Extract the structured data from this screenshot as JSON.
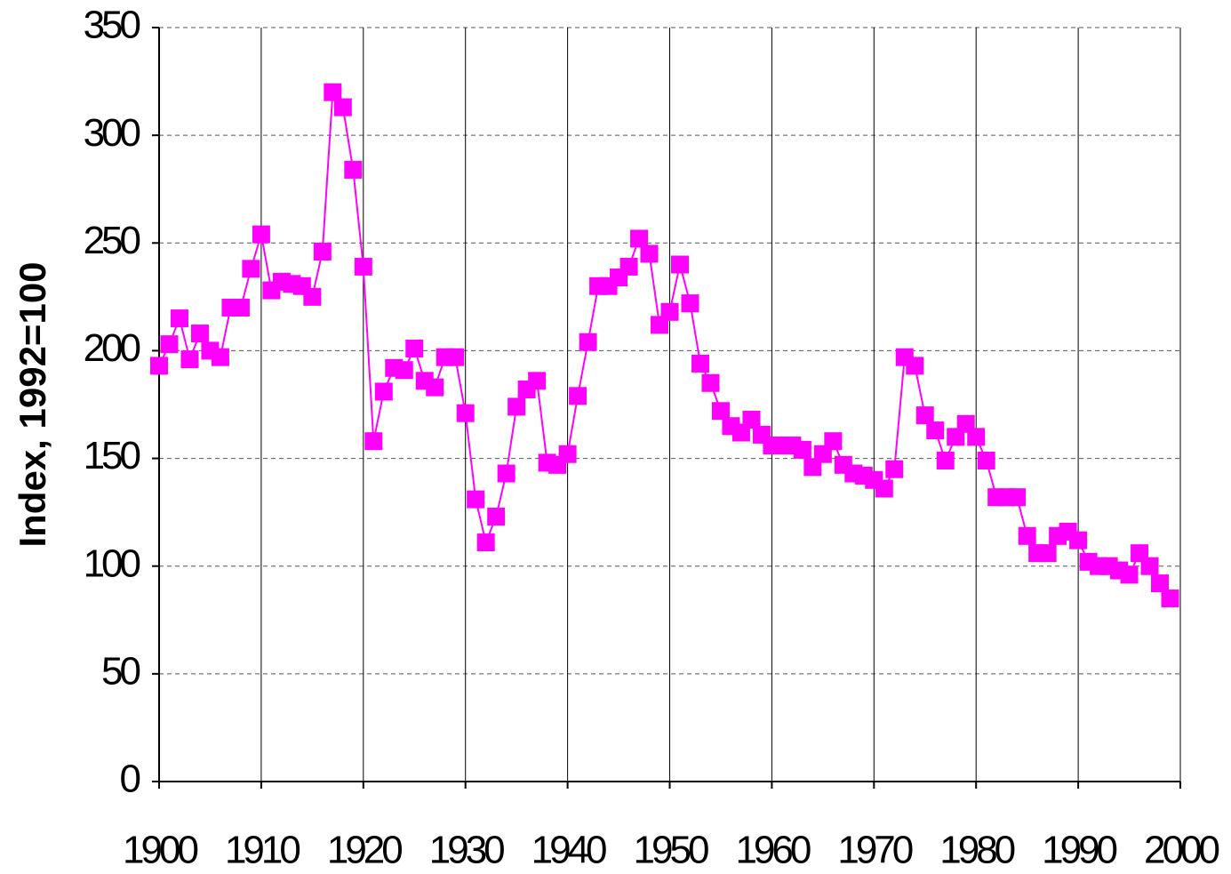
{
  "chart_data": {
    "type": "line",
    "y_label": "Index, 1992=100",
    "x": [
      1900,
      1901,
      1902,
      1903,
      1904,
      1905,
      1906,
      1907,
      1908,
      1909,
      1910,
      1911,
      1912,
      1913,
      1914,
      1915,
      1916,
      1917,
      1918,
      1919,
      1920,
      1921,
      1922,
      1923,
      1924,
      1925,
      1926,
      1927,
      1928,
      1929,
      1930,
      1931,
      1932,
      1933,
      1934,
      1935,
      1936,
      1937,
      1938,
      1939,
      1940,
      1941,
      1942,
      1943,
      1944,
      1945,
      1946,
      1947,
      1948,
      1949,
      1950,
      1951,
      1952,
      1953,
      1954,
      1955,
      1956,
      1957,
      1958,
      1959,
      1960,
      1961,
      1962,
      1963,
      1964,
      1965,
      1966,
      1967,
      1968,
      1969,
      1970,
      1971,
      1972,
      1973,
      1974,
      1975,
      1976,
      1977,
      1978,
      1979,
      1980,
      1981,
      1982,
      1983,
      1984,
      1985,
      1986,
      1987,
      1988,
      1989,
      1990,
      1991,
      1992,
      1993,
      1994,
      1995,
      1996,
      1997,
      1998,
      1999
    ],
    "series": [
      {
        "color": "#ff00ff",
        "values": [
          193,
          203,
          215,
          196,
          208,
          200,
          197,
          220,
          220,
          238,
          254,
          228,
          232,
          231,
          230,
          225,
          246,
          320,
          313,
          284,
          239,
          158,
          181,
          192,
          191,
          201,
          186,
          183,
          197,
          197,
          171,
          131,
          111,
          123,
          143,
          174,
          182,
          186,
          148,
          147,
          152,
          179,
          204,
          230,
          230,
          234,
          239,
          252,
          245,
          212,
          218,
          240,
          222,
          194,
          185,
          172,
          165,
          162,
          168,
          161,
          156,
          156,
          156,
          154,
          146,
          152,
          158,
          147,
          143,
          142,
          140,
          136,
          145,
          197,
          193,
          170,
          163,
          149,
          160,
          166,
          160,
          149,
          132,
          132,
          132,
          114,
          106,
          106,
          114,
          116,
          112,
          102,
          100,
          100,
          98,
          96,
          106,
          100,
          92,
          85
        ]
      }
    ],
    "xlim": [
      1900,
      2000
    ],
    "xticks": [
      1900,
      1910,
      1920,
      1930,
      1940,
      1950,
      1960,
      1970,
      1980,
      1990,
      2000
    ],
    "ylim": [
      0,
      350
    ],
    "yticks": [
      0,
      50,
      100,
      150,
      200,
      250,
      300,
      350
    ],
    "grid": true
  }
}
